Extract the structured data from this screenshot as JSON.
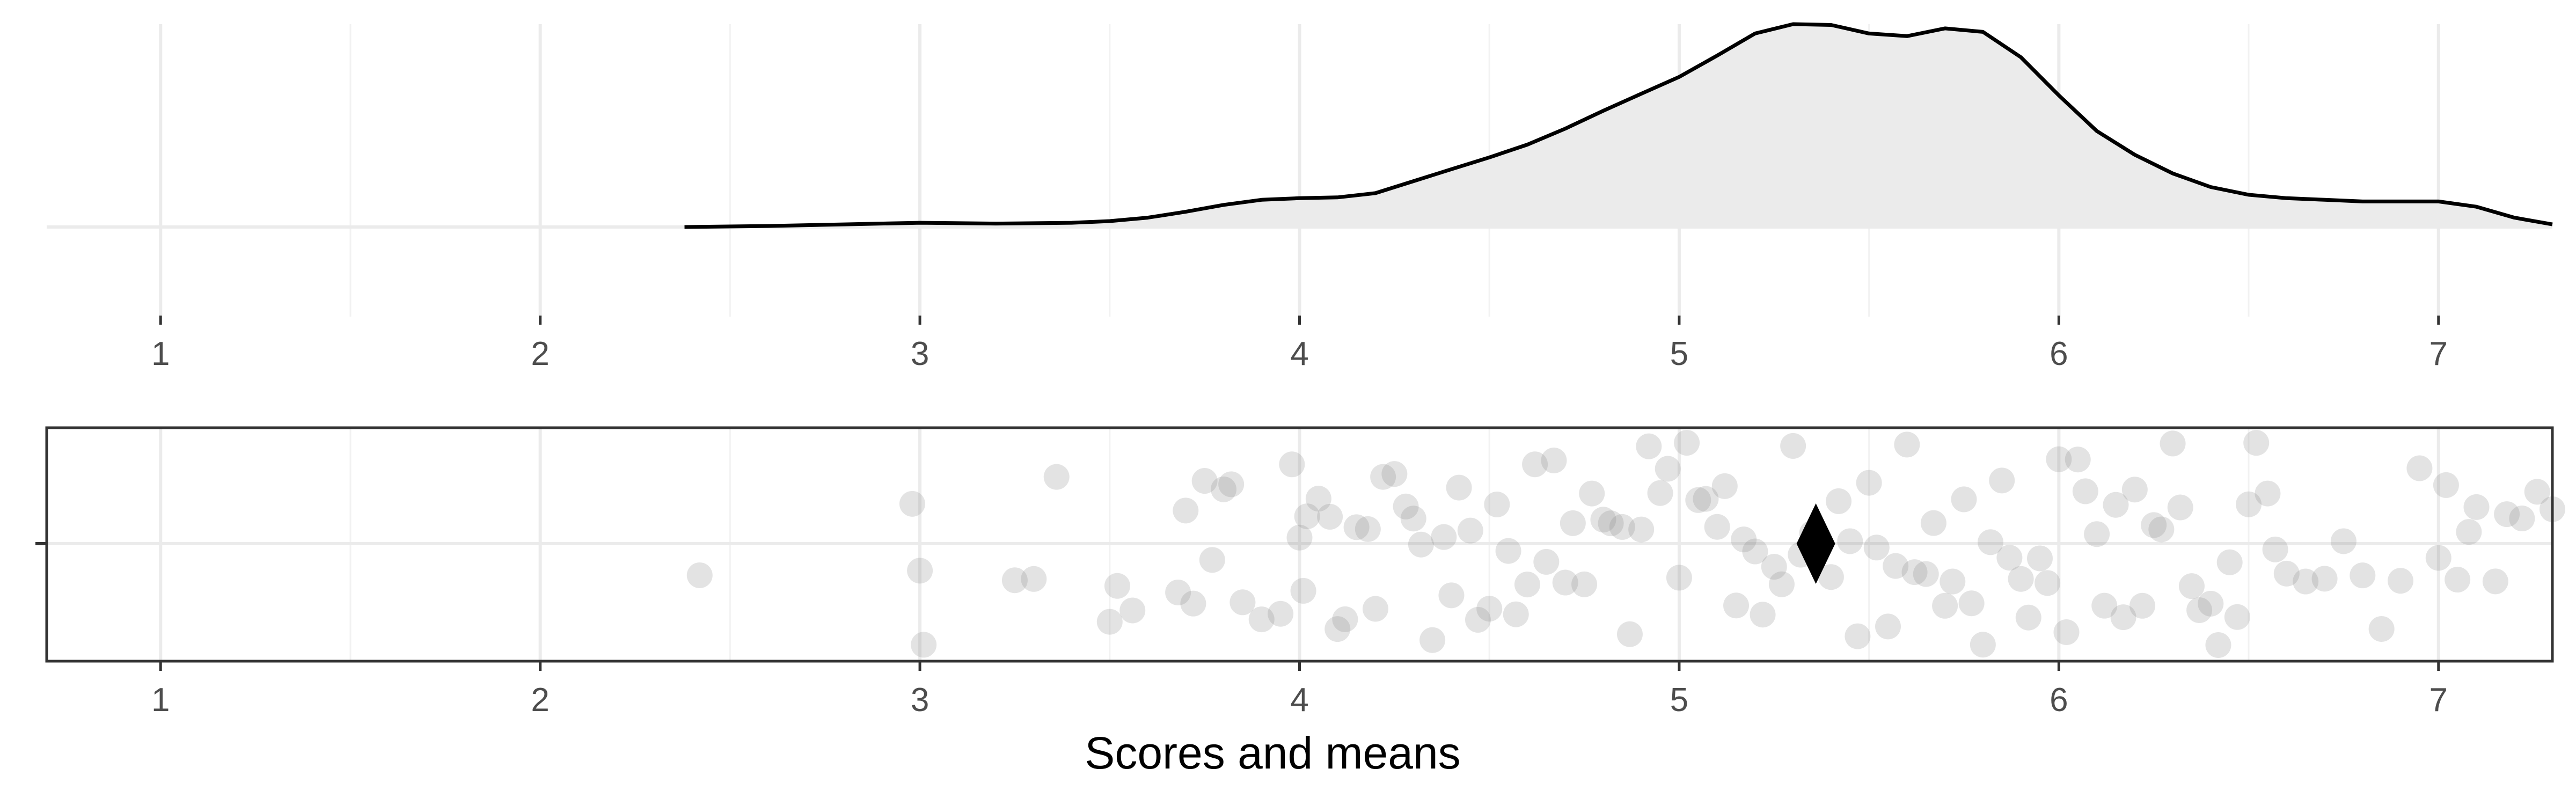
{
  "chart_data": [
    {
      "type": "area",
      "title": "",
      "xlabel": "",
      "ylabel": "",
      "xlim": [
        0.7,
        7.3
      ],
      "ylim": [
        0,
        1
      ],
      "grid": true,
      "x_ticks": [
        1,
        2,
        3,
        4,
        5,
        6,
        7
      ],
      "fill_color": "#ebebeb",
      "line_color": "#000000",
      "series": [
        {
          "x": [
            2.38,
            2.6,
            2.8,
            3.0,
            3.2,
            3.4,
            3.5,
            3.6,
            3.7,
            3.8,
            3.9,
            4.0,
            4.1,
            4.2,
            4.3,
            4.4,
            4.5,
            4.6,
            4.7,
            4.8,
            4.9,
            5.0,
            5.1,
            5.2,
            5.3,
            5.4,
            5.5,
            5.6,
            5.7,
            5.8,
            5.9,
            6.0,
            6.1,
            6.2,
            6.3,
            6.4,
            6.5,
            6.6,
            6.7,
            6.8,
            6.9,
            7.0,
            7.1,
            7.2,
            7.3
          ],
          "y": [
            0.0,
            0.005,
            0.013,
            0.021,
            0.017,
            0.021,
            0.029,
            0.046,
            0.075,
            0.109,
            0.134,
            0.142,
            0.146,
            0.167,
            0.226,
            0.285,
            0.343,
            0.406,
            0.485,
            0.573,
            0.657,
            0.74,
            0.845,
            0.954,
            1.0,
            0.996,
            0.954,
            0.941,
            0.979,
            0.962,
            0.837,
            0.649,
            0.473,
            0.356,
            0.264,
            0.197,
            0.159,
            0.142,
            0.134,
            0.126,
            0.126,
            0.126,
            0.1,
            0.046,
            0.013
          ]
        }
      ]
    },
    {
      "type": "scatter",
      "title": "",
      "xlabel": "Scores and means",
      "ylabel": "",
      "xlim": [
        0.7,
        7.3
      ],
      "grid": true,
      "x_ticks": [
        1,
        2,
        3,
        4,
        5,
        6,
        7
      ],
      "point_color": "#808080",
      "point_opacity": 0.22,
      "mean": {
        "value": 5.36,
        "color": "#000000"
      },
      "points": [
        2.42,
        2.98,
        3.0,
        3.01,
        3.25,
        3.3,
        3.36,
        3.5,
        3.52,
        3.56,
        3.68,
        3.7,
        3.72,
        3.75,
        3.77,
        3.8,
        3.82,
        3.85,
        3.9,
        3.95,
        3.98,
        4.0,
        4.01,
        4.02,
        4.05,
        4.08,
        4.1,
        4.12,
        4.15,
        4.18,
        4.2,
        4.22,
        4.25,
        4.28,
        4.3,
        4.32,
        4.35,
        4.38,
        4.4,
        4.42,
        4.45,
        4.47,
        4.5,
        4.52,
        4.55,
        4.57,
        4.6,
        4.62,
        4.65,
        4.67,
        4.7,
        4.72,
        4.75,
        4.77,
        4.8,
        4.82,
        4.85,
        4.87,
        4.9,
        4.92,
        4.95,
        4.97,
        5.0,
        5.02,
        5.05,
        5.07,
        5.1,
        5.12,
        5.15,
        5.17,
        5.2,
        5.22,
        5.25,
        5.27,
        5.3,
        5.32,
        5.35,
        5.37,
        5.4,
        5.42,
        5.45,
        5.47,
        5.5,
        5.52,
        5.55,
        5.57,
        5.6,
        5.62,
        5.65,
        5.67,
        5.7,
        5.72,
        5.75,
        5.77,
        5.8,
        5.82,
        5.85,
        5.87,
        5.9,
        5.92,
        5.95,
        5.97,
        6.0,
        6.02,
        6.05,
        6.07,
        6.1,
        6.12,
        6.15,
        6.17,
        6.2,
        6.22,
        6.25,
        6.27,
        6.3,
        6.32,
        6.35,
        6.37,
        6.4,
        6.42,
        6.45,
        6.47,
        6.5,
        6.52,
        6.55,
        6.57,
        6.6,
        6.65,
        6.7,
        6.75,
        6.8,
        6.85,
        6.9,
        6.95,
        7.0,
        7.02,
        7.05,
        7.08,
        7.1,
        7.15,
        7.18,
        7.22,
        7.26,
        7.3
      ]
    }
  ]
}
